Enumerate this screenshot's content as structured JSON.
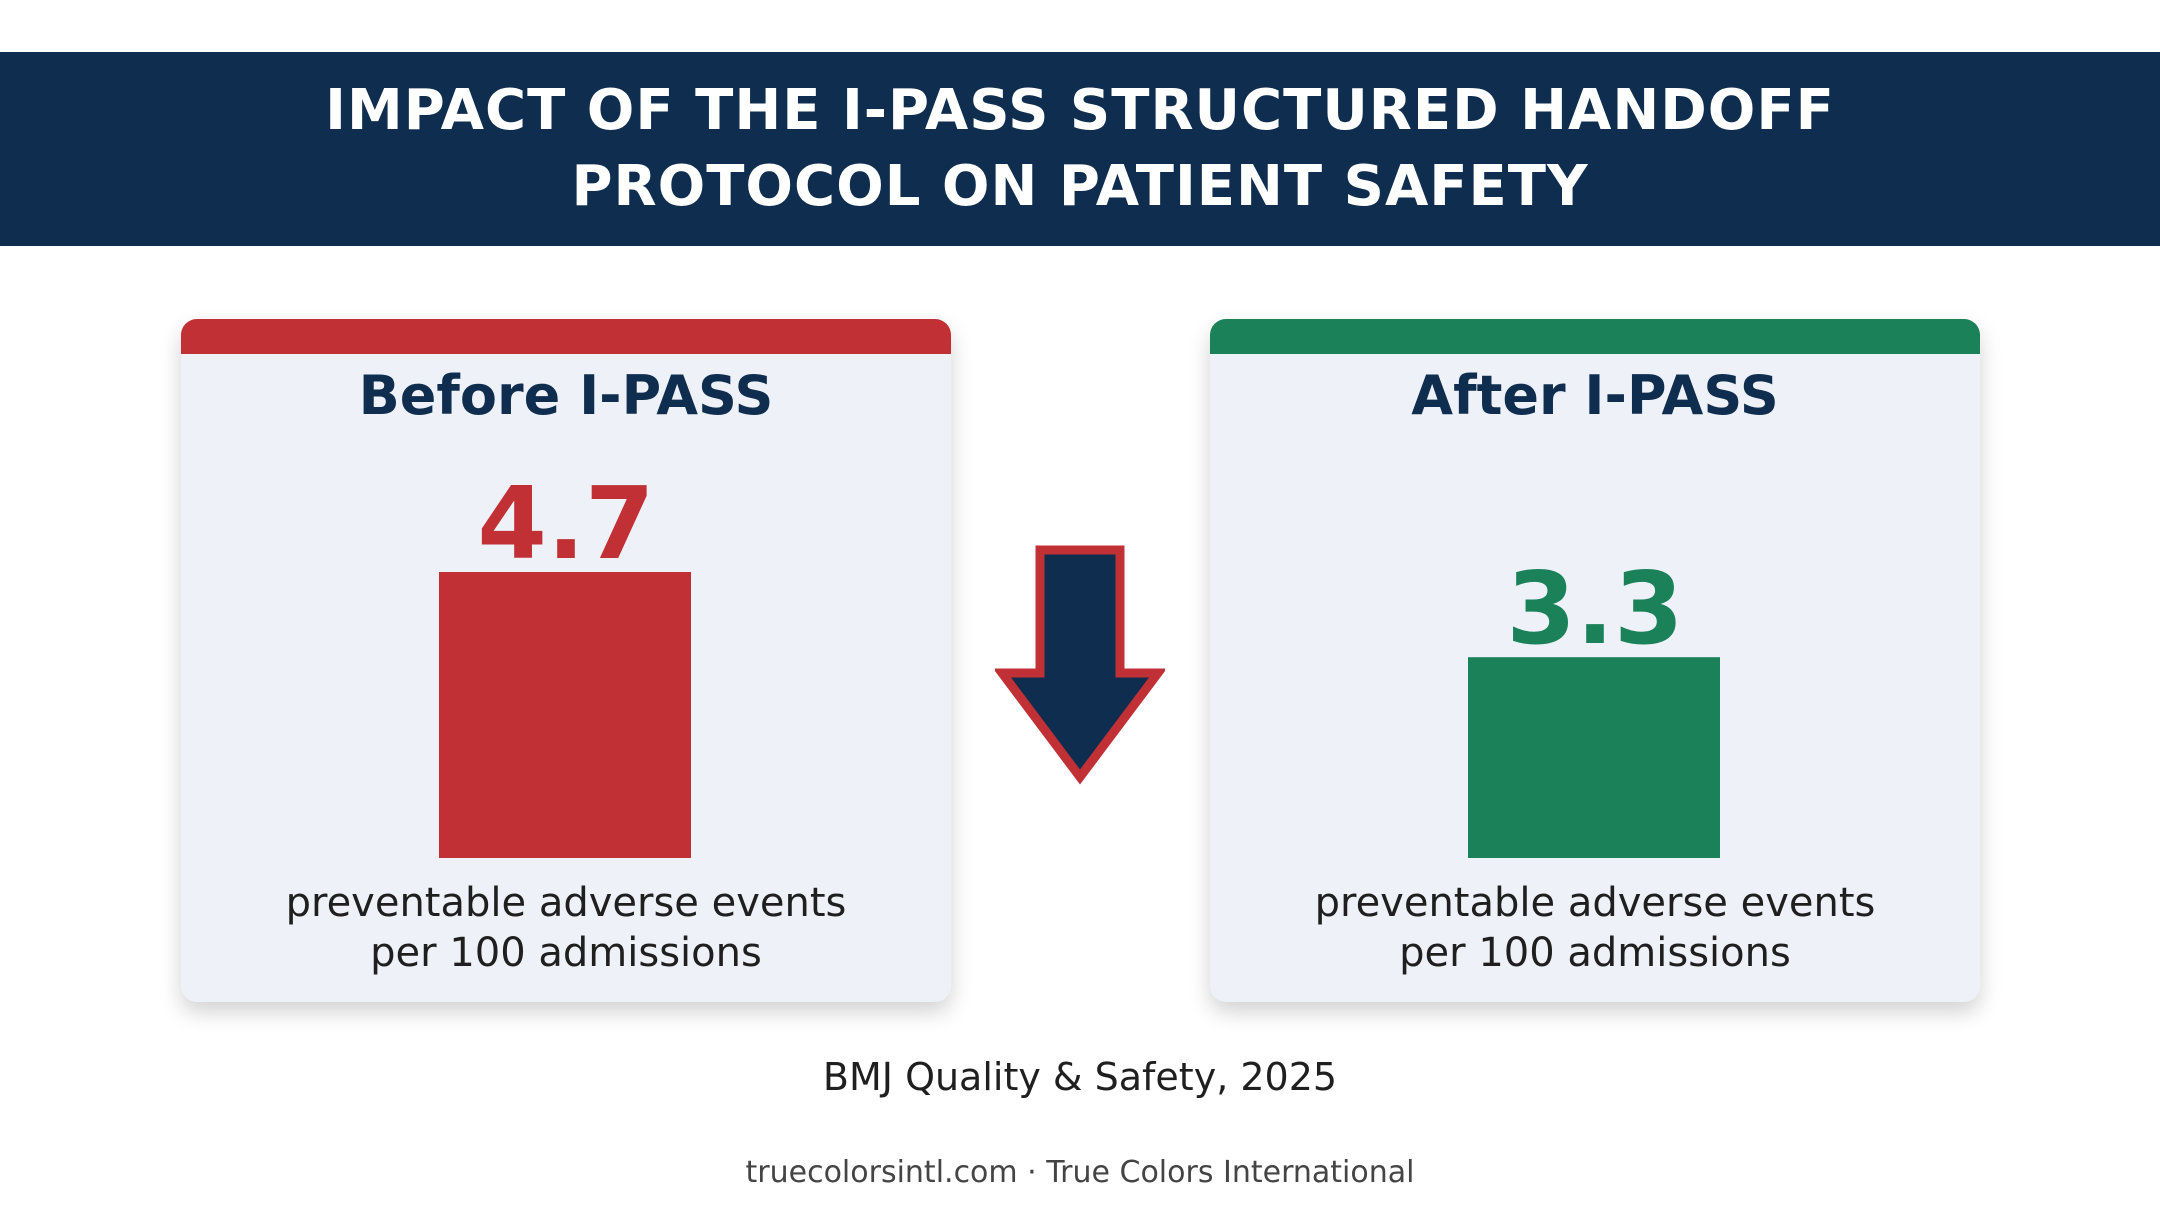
{
  "header": {
    "title_line1": "IMPACT OF THE I-PASS STRUCTURED HANDOFF",
    "title_line2": "PROTOCOL ON PATIENT SAFETY"
  },
  "colors": {
    "navy": "#0f2d4f",
    "before_red": "#c13035",
    "after_green": "#1b8159",
    "card_bg": "#eef2f8"
  },
  "icons": {
    "change_indicator": "down-arrow-icon"
  },
  "chart_data": {
    "type": "bar",
    "categories": [
      "Before I-PASS",
      "After I-PASS"
    ],
    "values": [
      4.7,
      3.3
    ],
    "value_labels": [
      "4.7",
      "3.3"
    ],
    "caption_line1": "preventable adverse events",
    "caption_line2": "per 100 admissions",
    "colors": [
      "#c13035",
      "#1b8159"
    ]
  },
  "source": "BMJ Quality & Safety, 2025",
  "footer": "truecolorsintl.com · True Colors International"
}
